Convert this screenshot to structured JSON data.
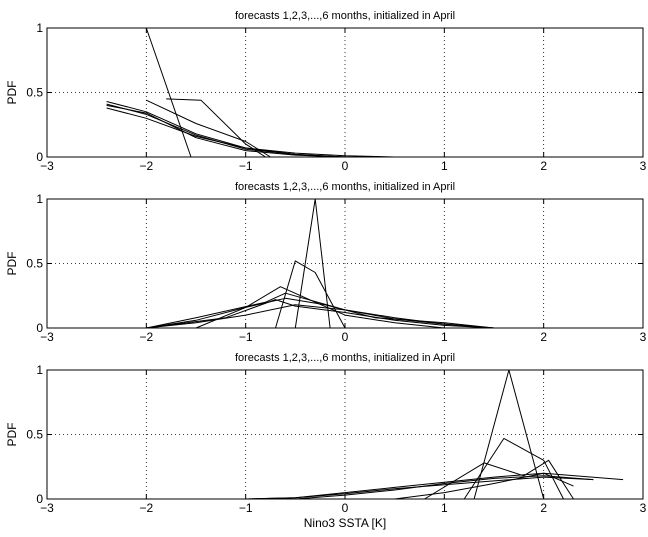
{
  "chart_data": [
    {
      "type": "line",
      "title": "forecasts 1,2,3,...,6 months, initialized in April",
      "ylabel": "PDF",
      "xlabel": "",
      "xlim": [
        -3,
        3
      ],
      "ylim": [
        0,
        1
      ],
      "xticks": [
        -3,
        -2,
        -1,
        0,
        1,
        2,
        3
      ],
      "yticks": [
        0,
        0.5,
        1
      ],
      "xtick_labels": [
        "−3",
        "−2",
        "−1",
        "0",
        "1",
        "2",
        "3"
      ],
      "ytick_labels": [
        "0",
        "0.5",
        "1"
      ],
      "grid": true,
      "series": [
        {
          "x": [
            -2.0,
            -1.55
          ],
          "y": [
            1.0,
            0.0
          ]
        },
        {
          "x": [
            -1.8,
            -1.45,
            -1.0,
            -0.8
          ],
          "y": [
            0.45,
            0.44,
            0.1,
            0.0
          ]
        },
        {
          "x": [
            -2.0,
            -1.5,
            -1.0,
            -0.75
          ],
          "y": [
            0.44,
            0.26,
            0.12,
            0.0
          ]
        },
        {
          "x": [
            -2.4,
            -2.0,
            -1.5,
            -1.0,
            -0.5,
            0.0,
            0.5
          ],
          "y": [
            0.43,
            0.35,
            0.18,
            0.07,
            0.02,
            0.0,
            0.0
          ]
        },
        {
          "x": [
            -2.4,
            -2.0,
            -1.5,
            -1.0,
            -0.5,
            0.0,
            0.5
          ],
          "y": [
            0.41,
            0.33,
            0.17,
            0.06,
            0.02,
            0.0,
            0.0
          ]
        },
        {
          "x": [
            -2.4,
            -2.0,
            -1.5,
            -1.0,
            -0.5,
            0.0,
            0.5
          ],
          "y": [
            0.38,
            0.3,
            0.16,
            0.07,
            0.03,
            0.01,
            0.0
          ]
        },
        {
          "x": [
            -2.4,
            -2.0,
            -1.5,
            -1.0,
            -0.5,
            0.0,
            1.0,
            3.0
          ],
          "y": [
            0.4,
            0.34,
            0.15,
            0.05,
            0.015,
            0.0,
            0.0,
            0.0
          ]
        }
      ]
    },
    {
      "type": "line",
      "title": "forecasts 1,2,3,...,6 months, initialized in April",
      "ylabel": "PDF",
      "xlabel": "",
      "xlim": [
        -3,
        3
      ],
      "ylim": [
        0,
        1
      ],
      "xticks": [
        -3,
        -2,
        -1,
        0,
        1,
        2,
        3
      ],
      "yticks": [
        0,
        0.5,
        1
      ],
      "xtick_labels": [
        "−3",
        "−2",
        "−1",
        "0",
        "1",
        "2",
        "3"
      ],
      "ytick_labels": [
        "0",
        "0.5",
        "1"
      ],
      "grid": true,
      "series": [
        {
          "x": [
            -0.5,
            -0.3,
            -0.15
          ],
          "y": [
            0.0,
            1.0,
            0.0
          ]
        },
        {
          "x": [
            -0.7,
            -0.5,
            -0.3,
            0.0
          ],
          "y": [
            0.0,
            0.52,
            0.43,
            0.0
          ]
        },
        {
          "x": [
            -1.5,
            -1.0,
            -0.65,
            -0.3,
            0.0,
            0.5,
            1.0
          ],
          "y": [
            0.0,
            0.16,
            0.32,
            0.2,
            0.1,
            0.04,
            0.0
          ]
        },
        {
          "x": [
            -2.0,
            -1.5,
            -0.8,
            -0.6,
            0.0,
            0.5,
            1.0,
            1.5
          ],
          "y": [
            0.0,
            0.08,
            0.2,
            0.27,
            0.14,
            0.07,
            0.03,
            0.0
          ]
        },
        {
          "x": [
            -2.0,
            -1.5,
            -1.0,
            -0.6,
            -0.2,
            0.3,
            1.0,
            1.5
          ],
          "y": [
            0.0,
            0.06,
            0.16,
            0.23,
            0.18,
            0.08,
            0.04,
            0.0
          ]
        },
        {
          "x": [
            -2.0,
            -1.2,
            -0.7,
            -0.5,
            0.0,
            0.5,
            1.0,
            1.5
          ],
          "y": [
            0.0,
            0.08,
            0.22,
            0.17,
            0.12,
            0.06,
            0.02,
            0.0
          ]
        },
        {
          "x": [
            -2.0,
            -1.5,
            -1.0,
            -0.5,
            0.0,
            0.5,
            1.0,
            1.5
          ],
          "y": [
            0.0,
            0.04,
            0.1,
            0.18,
            0.14,
            0.08,
            0.03,
            0.0
          ]
        }
      ]
    },
    {
      "type": "line",
      "title": "forecasts 1,2,3,...,6 months, initialized in April",
      "ylabel": "PDF",
      "xlabel": "Nino3 SSTA [K]",
      "xlim": [
        -3,
        3
      ],
      "ylim": [
        0,
        1
      ],
      "xticks": [
        -3,
        -2,
        -1,
        0,
        1,
        2,
        3
      ],
      "yticks": [
        0,
        0.5,
        1
      ],
      "xtick_labels": [
        "−3",
        "−2",
        "−1",
        "0",
        "1",
        "2",
        "3"
      ],
      "ytick_labels": [
        "0",
        "0.5",
        "1"
      ],
      "grid": true,
      "series": [
        {
          "x": [
            1.3,
            1.65,
            2.0
          ],
          "y": [
            0.0,
            1.0,
            0.0
          ]
        },
        {
          "x": [
            1.2,
            1.6,
            2.0,
            2.2
          ],
          "y": [
            0.0,
            0.47,
            0.3,
            0.0
          ]
        },
        {
          "x": [
            0.8,
            1.4,
            1.8,
            2.05,
            2.3
          ],
          "y": [
            0.0,
            0.28,
            0.18,
            0.3,
            0.0
          ]
        },
        {
          "x": [
            0.5,
            1.0,
            1.5,
            2.0,
            2.3
          ],
          "y": [
            0.0,
            0.05,
            0.12,
            0.2,
            0.1
          ]
        },
        {
          "x": [
            -2.0,
            -1.0,
            -0.5,
            0.0,
            0.5,
            1.0,
            1.5,
            2.0,
            2.5
          ],
          "y": [
            0.0,
            0.0,
            0.0,
            0.03,
            0.07,
            0.12,
            0.16,
            0.18,
            0.15
          ]
        },
        {
          "x": [
            -2.0,
            -1.0,
            -0.5,
            0.0,
            0.5,
            1.0,
            1.5,
            2.0,
            2.5
          ],
          "y": [
            0.0,
            0.0,
            0.01,
            0.04,
            0.08,
            0.11,
            0.14,
            0.17,
            0.15
          ]
        },
        {
          "x": [
            -2.0,
            -1.0,
            -0.5,
            0.0,
            0.5,
            1.0,
            1.5,
            2.0,
            2.8
          ],
          "y": [
            0.0,
            0.0,
            0.01,
            0.05,
            0.09,
            0.13,
            0.17,
            0.2,
            0.15
          ]
        }
      ]
    }
  ]
}
